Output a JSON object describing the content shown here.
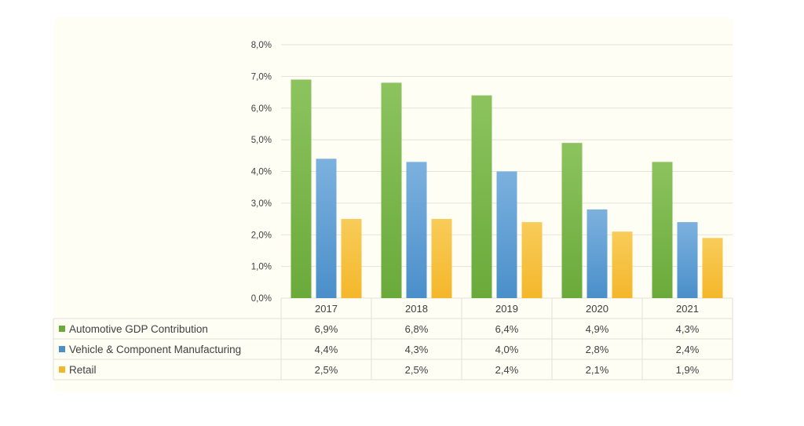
{
  "chart_data": {
    "type": "bar",
    "categories": [
      "2017",
      "2018",
      "2019",
      "2020",
      "2021"
    ],
    "series": [
      {
        "name": "Automotive GDP Contribution",
        "values": [
          6.9,
          6.8,
          6.4,
          4.9,
          4.3
        ],
        "labels": [
          "6,9%",
          "6,8%",
          "6,4%",
          "4,9%",
          "4,3%"
        ],
        "color": "#6aaa3a",
        "color_light": "#8cc35e"
      },
      {
        "name": "Vehicle & Component Manufacturing",
        "values": [
          4.4,
          4.3,
          4.0,
          2.8,
          2.4
        ],
        "labels": [
          "4,4%",
          "4,3%",
          "4,0%",
          "2,8%",
          "2,4%"
        ],
        "color": "#4a8fca",
        "color_light": "#7cb1de"
      },
      {
        "name": "Retail",
        "values": [
          2.5,
          2.5,
          2.4,
          2.1,
          1.9
        ],
        "labels": [
          "2,5%",
          "2,5%",
          "2,4%",
          "2,1%",
          "1,9%"
        ],
        "color": "#f4b72a",
        "color_light": "#f8cc5a"
      }
    ],
    "ylim": [
      0,
      8
    ],
    "yticks": [
      0,
      1,
      2,
      3,
      4,
      5,
      6,
      7,
      8
    ],
    "ytick_labels": [
      "0,0%",
      "1,0%",
      "2,0%",
      "3,0%",
      "4,0%",
      "5,0%",
      "6,0%",
      "7,0%",
      "8,0%"
    ],
    "grid": true,
    "legend": "data-table-left",
    "title": "",
    "xlabel": "",
    "ylabel": ""
  }
}
